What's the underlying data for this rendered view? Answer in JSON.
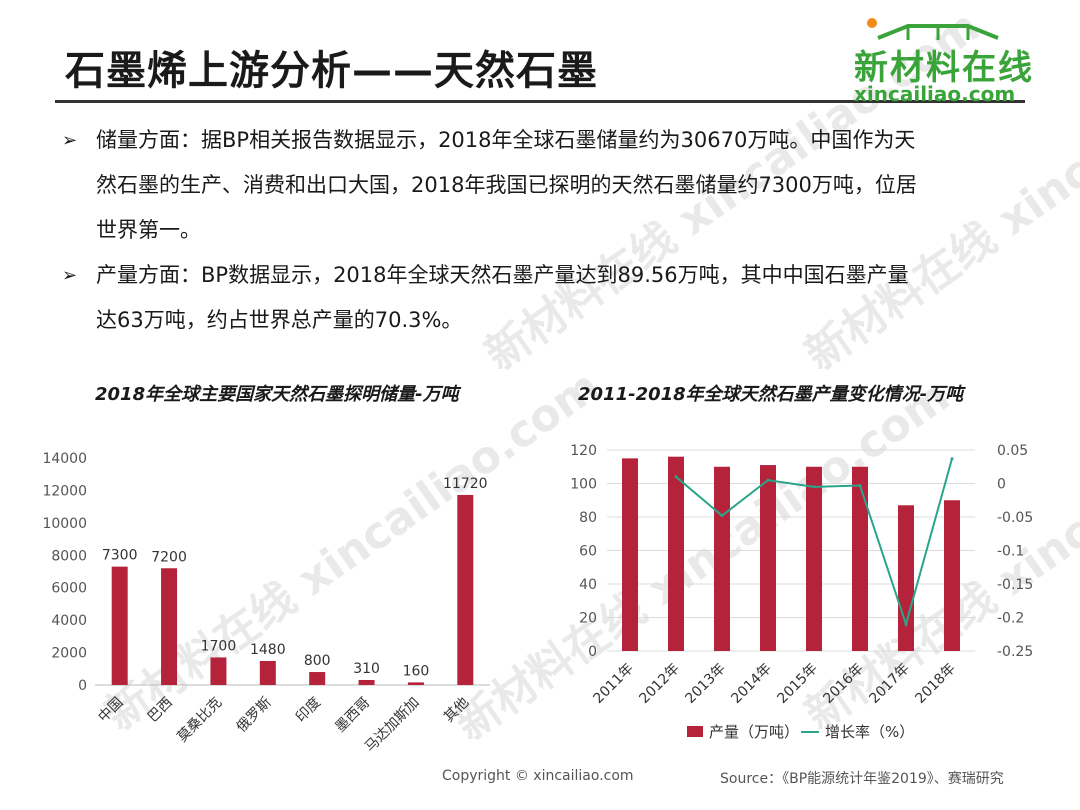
{
  "title": "石墨烯上游分析——天然石墨",
  "logo": {
    "name_cn": "新材料在线",
    "name_en": "xincailiao.com"
  },
  "watermark": "新材料在线 xincailiao.com",
  "bullets": [
    {
      "lines": [
        "储量方面：据BP相关报告数据显示，2018年全球石墨储量约为30670万吨。中国作为天",
        "然石墨的生产、消费和出口大国，2018年我国已探明的天然石墨储量约7300万吨，位居",
        "世界第一。"
      ]
    },
    {
      "lines": [
        "产量方面：BP数据显示，2018年全球天然石墨产量达到89.56万吨，其中中国石墨产量",
        "达63万吨，约占世界总产量的70.3%。"
      ]
    }
  ],
  "chart_data": [
    {
      "type": "bar",
      "title": "2018年全球主要国家天然石墨探明储量-万吨",
      "categories": [
        "中国",
        "巴西",
        "莫桑比克",
        "俄罗斯",
        "印度",
        "墨西哥",
        "马达加斯加",
        "其他"
      ],
      "values": [
        7300,
        7200,
        1700,
        1480,
        800,
        310,
        160,
        11720
      ],
      "ylim": [
        0,
        14000
      ],
      "yticks": [
        0,
        2000,
        4000,
        6000,
        8000,
        10000,
        12000,
        14000
      ],
      "color": "#b5233b"
    },
    {
      "type": "bar+line",
      "title": "2011-2018年全球天然石墨产量变化情况-万吨",
      "categories": [
        "2011年",
        "2012年",
        "2013年",
        "2014年",
        "2015年",
        "2016年",
        "2017年",
        "2018年"
      ],
      "series": [
        {
          "name": "产量（万吨）",
          "type": "bar",
          "axis": "left",
          "values": [
            115,
            116,
            110,
            111,
            110,
            110,
            87,
            90
          ],
          "color": "#b5233b"
        },
        {
          "name": "增长率（%）",
          "type": "line",
          "axis": "right",
          "values": [
            null,
            0.01,
            -0.048,
            0.005,
            -0.005,
            -0.003,
            -0.21,
            0.037
          ],
          "color": "#2aa58a"
        }
      ],
      "ylim_left": [
        0,
        120
      ],
      "yticks_left": [
        0,
        20,
        40,
        60,
        80,
        100,
        120
      ],
      "ylim_right": [
        -0.25,
        0.05
      ],
      "yticks_right": [
        "0.05",
        "0",
        "-0.05",
        "-0.1",
        "-0.15",
        "-0.2",
        "-0.25"
      ]
    }
  ],
  "footer": {
    "copyright": "Copyright © xincailiao.com",
    "source": "Source：《BP能源统计年鉴2019》、赛瑞研究"
  }
}
